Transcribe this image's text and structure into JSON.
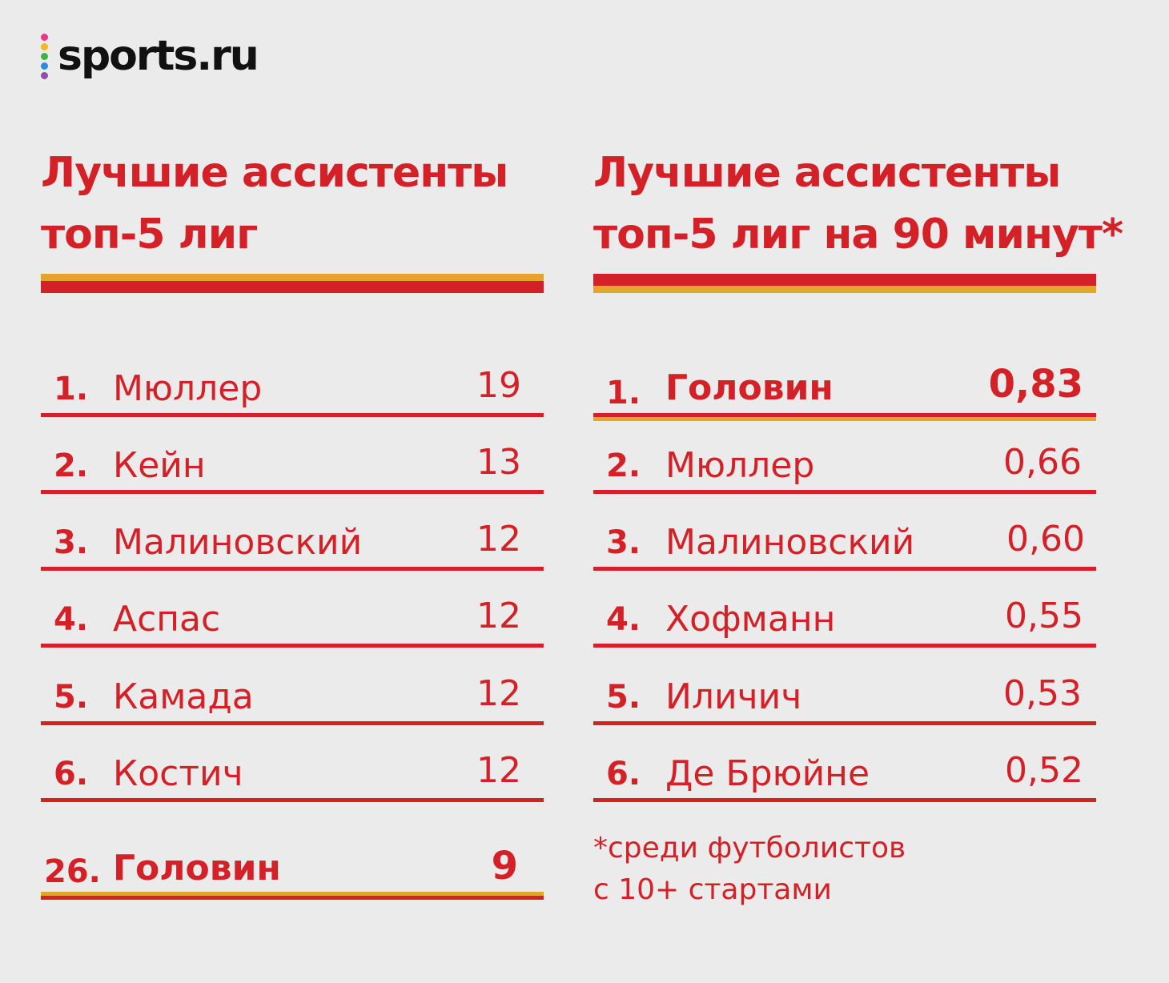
{
  "logo": {
    "text": "sports.ru",
    "dot_colors": [
      "#e8388a",
      "#f3b81f",
      "#3cb34a",
      "#2b8fd8",
      "#8e4fa6"
    ]
  },
  "colors": {
    "red": "#d42027",
    "yellow": "#e3a62b",
    "background": "#ebebeb"
  },
  "left": {
    "title_line1": "Лучшие ассистенты",
    "title_line2": "топ-5 лиг",
    "rows": [
      {
        "rank": "1.",
        "name": "Мюллер",
        "value": "19"
      },
      {
        "rank": "2.",
        "name": "Кейн",
        "value": "13"
      },
      {
        "rank": "3.",
        "name": "Малиновский",
        "value": "12"
      },
      {
        "rank": "4.",
        "name": "Аспас",
        "value": "12"
      },
      {
        "rank": "5.",
        "name": "Камада",
        "value": "12"
      },
      {
        "rank": "6.",
        "name": "Костич",
        "value": "12"
      }
    ],
    "highlight": {
      "rank": "26.",
      "name": "Головин",
      "value": "9"
    }
  },
  "right": {
    "title_line1": "Лучшие ассистенты",
    "title_line2": "топ-5 лиг на 90 минут*",
    "rows": [
      {
        "rank": "1.",
        "name": "Головин",
        "value": "0,83"
      },
      {
        "rank": "2.",
        "name": "Мюллер",
        "value": "0,66"
      },
      {
        "rank": "3.",
        "name": "Малиновский",
        "value": "0,60"
      },
      {
        "rank": "4.",
        "name": "Хофманн",
        "value": "0,55"
      },
      {
        "rank": "5.",
        "name": "Иличич",
        "value": "0,53"
      },
      {
        "rank": "6.",
        "name": "Де Брюйне",
        "value": "0,52"
      }
    ],
    "note_line1": "*среди футболистов",
    "note_line2": "с 10+ стартами"
  }
}
